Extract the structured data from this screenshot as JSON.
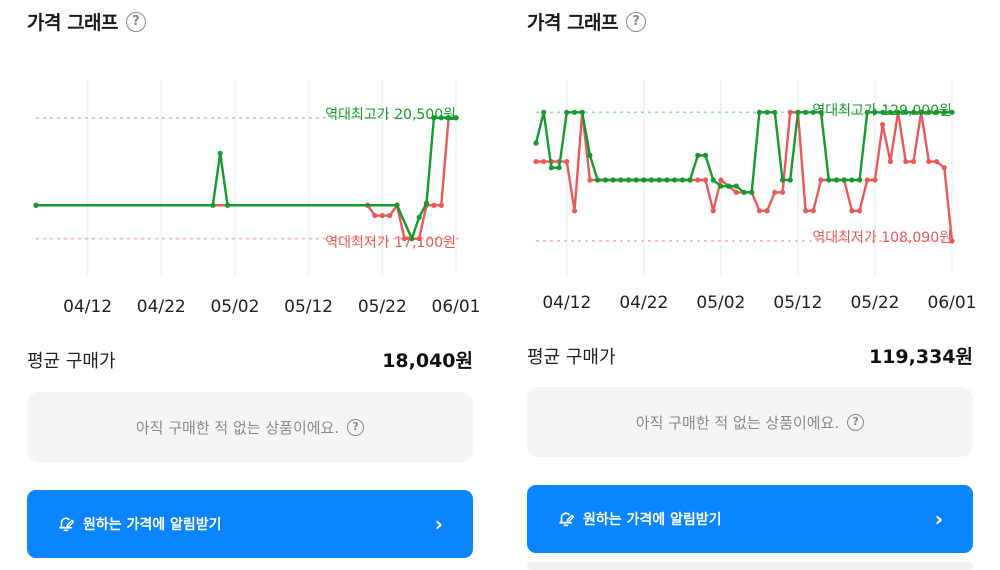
{
  "panels": [
    {
      "title": "가격 그래프",
      "x_ticks": [
        "04/12",
        "04/22",
        "05/02",
        "05/12",
        "05/22",
        "06/01"
      ],
      "high_label": "역대최고가 20,500원",
      "low_label": "역대최저가 17,100원",
      "avg_label": "평균 구매가",
      "avg_value": "18,040원",
      "notice": "아직 구매한 적 없는 상품이에요.",
      "alert_label": "원하는 가격에 알림받기"
    },
    {
      "title": "가격 그래프",
      "x_ticks": [
        "04/12",
        "04/22",
        "05/02",
        "05/12",
        "05/22",
        "06/01"
      ],
      "high_label": "역대최고가 129,000원",
      "low_label": "역대최저가 108,090원",
      "avg_label": "평균 구매가",
      "avg_value": "119,334원",
      "notice": "아직 구매한 적 없는 상품이에요.",
      "alert_label": "원하는 가격에 알림받기"
    }
  ],
  "icons": {
    "help": "question-circle-icon",
    "alert": "bell-edit-icon",
    "chevron": "chevron-right-icon"
  },
  "colors": {
    "high": "#169a2e",
    "low": "#e85a5a",
    "accent": "#0a84ff"
  },
  "chart_data": [
    {
      "type": "line",
      "x_start": "04/05",
      "x_ticks": [
        "04/12",
        "04/22",
        "05/02",
        "05/12",
        "05/22",
        "06/01"
      ],
      "ylim": [
        16500,
        21000
      ],
      "series": [
        {
          "color": "#169a2e",
          "x": [
            "04/05",
            "04/29",
            "04/30",
            "05/01",
            "05/24",
            "05/26",
            "05/27",
            "05/28",
            "05/29",
            "05/30",
            "05/31",
            "06/01"
          ],
          "values": [
            18040,
            18040,
            19500,
            18040,
            18040,
            17100,
            17700,
            18100,
            20500,
            20500,
            20500,
            20500
          ]
        },
        {
          "color": "#e85a5a",
          "x": [
            "04/05",
            "05/20",
            "05/21",
            "05/22",
            "05/23",
            "05/24",
            "05/25",
            "05/26",
            "05/27",
            "05/28",
            "05/29",
            "05/30",
            "05/31",
            "06/01"
          ],
          "values": [
            18040,
            18040,
            17750,
            17750,
            17750,
            18040,
            17100,
            17100,
            17100,
            18040,
            18040,
            18040,
            20500,
            20500
          ]
        }
      ],
      "high": 20500,
      "low": 17100
    },
    {
      "type": "line",
      "x_start": "04/08",
      "x_ticks": [
        "04/12",
        "04/22",
        "05/02",
        "05/12",
        "05/22",
        "06/01"
      ],
      "ylim": [
        105000,
        131000
      ],
      "series": [
        {
          "color": "#169a2e",
          "x": [
            "04/08",
            "04/09",
            "04/10",
            "04/11",
            "04/12",
            "04/13",
            "04/14",
            "04/15",
            "04/16",
            "04/17",
            "04/18",
            "04/19",
            "04/20",
            "04/21",
            "04/22",
            "04/23",
            "04/24",
            "04/25",
            "04/26",
            "04/27",
            "04/28",
            "04/29",
            "04/30",
            "05/01",
            "05/02",
            "05/03",
            "05/04",
            "05/05",
            "05/06",
            "05/07",
            "05/08",
            "05/09",
            "05/10",
            "05/11",
            "05/12",
            "05/13",
            "05/14",
            "05/15",
            "05/16",
            "05/17",
            "05/18",
            "05/19",
            "05/20",
            "05/21",
            "05/22",
            "05/23",
            "05/24",
            "05/25",
            "05/26",
            "05/27",
            "05/28",
            "05/29",
            "05/30",
            "05/31",
            "06/01"
          ],
          "values": [
            124000,
            129000,
            120000,
            120000,
            129000,
            129000,
            129000,
            122000,
            118000,
            118000,
            118000,
            118000,
            118000,
            118000,
            118000,
            118000,
            118000,
            118000,
            118000,
            118000,
            118000,
            122000,
            122000,
            118000,
            117000,
            117000,
            117000,
            116000,
            116000,
            129000,
            129000,
            129000,
            118000,
            118000,
            129000,
            129000,
            129000,
            129000,
            118000,
            118000,
            118000,
            118000,
            118000,
            129000,
            129000,
            129000,
            129000,
            129000,
            129000,
            129000,
            129000,
            129000,
            129000,
            129000,
            129000
          ]
        },
        {
          "color": "#e85a5a",
          "x": [
            "04/08",
            "04/09",
            "04/10",
            "04/11",
            "04/12",
            "04/13",
            "04/14",
            "04/15",
            "04/16",
            "04/17",
            "04/18",
            "04/19",
            "04/20",
            "04/21",
            "04/22",
            "04/23",
            "04/24",
            "04/25",
            "04/26",
            "04/27",
            "04/28",
            "04/29",
            "04/30",
            "05/01",
            "05/02",
            "05/03",
            "05/04",
            "05/05",
            "05/06",
            "05/07",
            "05/08",
            "05/09",
            "05/10",
            "05/11",
            "05/12",
            "05/13",
            "05/14",
            "05/15",
            "05/16",
            "05/17",
            "05/18",
            "05/19",
            "05/20",
            "05/21",
            "05/22",
            "05/23",
            "05/24",
            "05/25",
            "05/26",
            "05/27",
            "05/28",
            "05/29",
            "05/30",
            "05/31",
            "06/01"
          ],
          "values": [
            121000,
            121000,
            121000,
            121000,
            121000,
            113000,
            129000,
            118000,
            118000,
            118000,
            118000,
            118000,
            118000,
            118000,
            118000,
            118000,
            118000,
            118000,
            118000,
            118000,
            118000,
            118000,
            118000,
            113000,
            118000,
            117000,
            116000,
            116000,
            116000,
            113000,
            113000,
            116000,
            116000,
            129000,
            129000,
            113000,
            113000,
            118000,
            118000,
            118000,
            118000,
            113000,
            113000,
            118000,
            118000,
            127000,
            121000,
            129000,
            121000,
            121000,
            129000,
            121000,
            121000,
            120000,
            108090
          ]
        }
      ],
      "high": 129000,
      "low": 108090
    }
  ]
}
